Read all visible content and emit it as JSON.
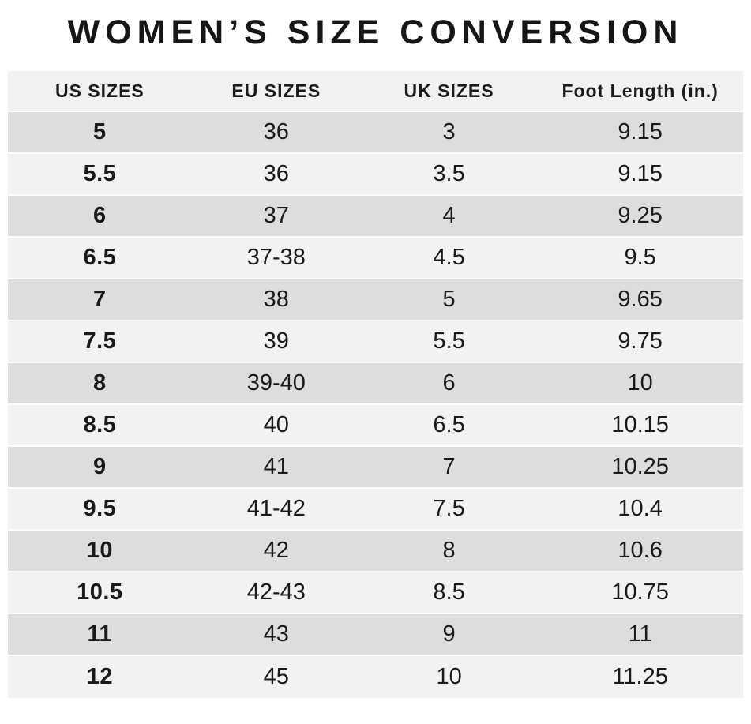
{
  "chart_data": {
    "type": "table",
    "title": "WOMEN’S SIZE CONVERSION",
    "columns": [
      "US SIZES",
      "EU SIZES",
      "UK SIZES",
      "Foot Length (in.)"
    ],
    "rows": [
      [
        "5",
        "36",
        "3",
        "9.15"
      ],
      [
        "5.5",
        "36",
        "3.5",
        "9.15"
      ],
      [
        "6",
        "37",
        "4",
        "9.25"
      ],
      [
        "6.5",
        "37-38",
        "4.5",
        "9.5"
      ],
      [
        "7",
        "38",
        "5",
        "9.65"
      ],
      [
        "7.5",
        "39",
        "5.5",
        "9.75"
      ],
      [
        "8",
        "39-40",
        "6",
        "10"
      ],
      [
        "8.5",
        "40",
        "6.5",
        "10.15"
      ],
      [
        "9",
        "41",
        "7",
        "10.25"
      ],
      [
        "9.5",
        "41-42",
        "7.5",
        "10.4"
      ],
      [
        "10",
        "42",
        "8",
        "10.6"
      ],
      [
        "10.5",
        "42-43",
        "8.5",
        "10.75"
      ],
      [
        "11",
        "43",
        "9",
        "11"
      ],
      [
        "12",
        "45",
        "10",
        "11.25"
      ]
    ],
    "colors": {
      "header_bg": "#f1f1f2",
      "row_odd_bg": "#dcddde",
      "row_even_bg": "#f2f2f3",
      "separator": "#fdfdfd",
      "text": "#1a1a1a"
    },
    "layout_hints": {
      "grid": "alternating-row-shading",
      "legend": "none",
      "first_column_bold": true
    }
  }
}
